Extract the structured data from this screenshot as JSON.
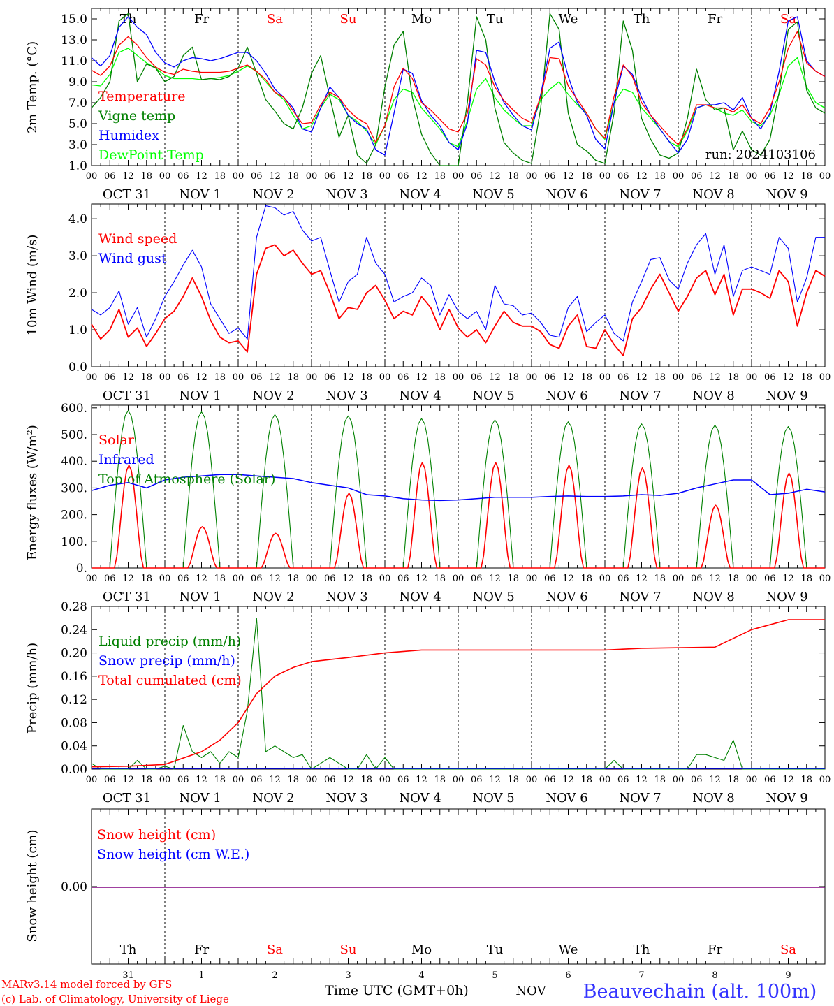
{
  "days": [
    "Th",
    "Fr",
    "Sa",
    "Su",
    "Mo",
    "Tu",
    "We",
    "Th",
    "Fr",
    "Sa"
  ],
  "weekend_days": [
    "Sa",
    "Su"
  ],
  "date_labels": [
    "OCT 31",
    "NOV  1",
    "NOV  2",
    "NOV  3",
    "NOV  4",
    "NOV  5",
    "NOV  6",
    "NOV  7",
    "NOV  8",
    "NOV  9"
  ],
  "hour_labels": [
    "00",
    "06",
    "12",
    "18"
  ],
  "last_hour_label": "00",
  "bottom_day_numbers": [
    "31",
    "1",
    "2",
    "3",
    "4",
    "5",
    "6",
    "7",
    "8",
    "9"
  ],
  "footer": {
    "model": "MARv3.14 model forced by GFS",
    "lab": "(c) Lab. of Climatology, University of Liege",
    "time_label": "Time UTC (GMT+0h)",
    "month": "NOV",
    "station": "Beauvechain (alt. 100m)"
  },
  "colors": {
    "red": "#ff0000",
    "darkgreen": "#008000",
    "blue": "#0000ff",
    "lightgreen": "#00ff00",
    "purple": "#800080"
  },
  "chart_data": [
    {
      "type": "line",
      "ylabel": "2m Temp. (°C)",
      "ylim": [
        1,
        16
      ],
      "yticks": [
        "1.0",
        "3.0",
        "5.0",
        "7.0",
        "9.0",
        "11.0",
        "13.0",
        "15.0"
      ],
      "annotation": "run: 2024103106",
      "x_hours_from_oct31_00": [
        0,
        3,
        6,
        9,
        12,
        15,
        18,
        21,
        24,
        27,
        30,
        33,
        36,
        39,
        42,
        45,
        48,
        51,
        54,
        57,
        60,
        63,
        66,
        69,
        72,
        75,
        78,
        81,
        84,
        87,
        90,
        93,
        96,
        99,
        102,
        105,
        108,
        111,
        114,
        117,
        120,
        123,
        126,
        129,
        132,
        135,
        138,
        141,
        144,
        147,
        150,
        153,
        156,
        159,
        162,
        165,
        168,
        171,
        174,
        177,
        180,
        183,
        186,
        189,
        192,
        195,
        198,
        201,
        204,
        207,
        210,
        213,
        216,
        219,
        222,
        225,
        228,
        231,
        234,
        237,
        240
      ],
      "series": [
        {
          "name": "Temperature",
          "color": "red",
          "values": [
            10.1,
            9.6,
            10.5,
            12.5,
            13.3,
            12.5,
            11.3,
            10.4,
            9.9,
            9.7,
            10.2,
            10.0,
            9.9,
            9.9,
            9.9,
            10.0,
            10.3,
            10.6,
            10.0,
            9.2,
            8.0,
            7.5,
            6.2,
            5.0,
            5.1,
            6.8,
            8.0,
            7.5,
            6.3,
            5.5,
            5.0,
            3.2,
            4.8,
            8.5,
            10.3,
            9.3,
            7.0,
            6.3,
            5.4,
            4.5,
            4.2,
            6.0,
            11.2,
            10.6,
            8.5,
            7.2,
            6.3,
            5.5,
            5.1,
            7.6,
            11.3,
            11.2,
            8.6,
            7.3,
            6.0,
            4.5,
            3.6,
            7.6,
            10.6,
            9.5,
            7.0,
            5.8,
            4.8,
            3.8,
            3.0,
            4.5,
            6.8,
            6.8,
            6.5,
            6.5,
            6.1,
            6.8,
            5.5,
            5.0,
            6.5,
            9.0,
            12.2,
            13.8,
            10.8,
            10.0,
            9.5
          ]
        },
        {
          "name": "Vigne temp",
          "color": "darkgreen",
          "values": [
            6.5,
            7.5,
            9.0,
            14.8,
            15.5,
            9.0,
            10.7,
            10.3,
            9.0,
            9.5,
            11.5,
            12.3,
            9.2,
            9.3,
            9.2,
            9.5,
            10.3,
            12.3,
            9.8,
            7.3,
            6.2,
            5.0,
            4.5,
            6.5,
            9.8,
            11.5,
            7.5,
            3.7,
            5.8,
            2.0,
            1.2,
            3.0,
            8.5,
            12.5,
            13.8,
            7.5,
            4.0,
            2.2,
            1.0,
            0.5,
            0.6,
            7.0,
            15.2,
            13.0,
            6.5,
            3.2,
            2.2,
            1.5,
            1.2,
            6.5,
            15.5,
            14.0,
            6.0,
            3.0,
            2.4,
            1.5,
            1.2,
            6.0,
            14.8,
            12.0,
            5.5,
            3.5,
            2.0,
            1.7,
            2.2,
            5.5,
            10.2,
            7.3,
            6.3,
            6.5,
            2.5,
            4.3,
            2.5,
            2.0,
            3.5,
            8.0,
            14.0,
            14.7,
            8.2,
            6.5,
            6.0
          ]
        },
        {
          "name": "Humidex",
          "color": "blue",
          "values": [
            11.3,
            10.5,
            11.5,
            14.2,
            15.2,
            14.2,
            13.5,
            11.8,
            10.8,
            10.4,
            11.0,
            11.3,
            11.2,
            11.0,
            11.2,
            11.5,
            11.8,
            11.8,
            11.0,
            9.8,
            8.3,
            7.5,
            6.5,
            4.5,
            4.2,
            6.5,
            8.5,
            7.5,
            5.8,
            5.0,
            4.5,
            2.5,
            2.0,
            6.0,
            10.2,
            9.8,
            7.2,
            5.8,
            4.8,
            3.2,
            2.5,
            5.0,
            12.0,
            11.8,
            9.0,
            7.0,
            5.8,
            4.8,
            4.4,
            7.8,
            12.2,
            12.8,
            9.5,
            7.0,
            5.8,
            3.5,
            2.6,
            7.0,
            10.5,
            9.7,
            7.5,
            5.8,
            4.5,
            3.3,
            2.2,
            3.5,
            6.5,
            6.8,
            6.8,
            7.0,
            6.3,
            7.5,
            5.5,
            4.5,
            6.0,
            10.0,
            14.8,
            15.2,
            11.0,
            10.0,
            9.5
          ]
        },
        {
          "name": "DewPoint Temp",
          "color": "lightgreen",
          "values": [
            8.7,
            8.6,
            9.7,
            11.8,
            12.2,
            11.5,
            10.8,
            10.3,
            9.6,
            9.3,
            9.3,
            9.3,
            9.2,
            9.3,
            9.4,
            9.6,
            10.0,
            10.5,
            10.0,
            9.0,
            8.0,
            7.3,
            5.8,
            4.5,
            4.8,
            6.5,
            7.8,
            7.3,
            5.8,
            5.2,
            4.3,
            3.0,
            4.8,
            7.3,
            8.3,
            8.0,
            6.5,
            5.5,
            4.5,
            3.2,
            2.8,
            5.3,
            8.3,
            9.3,
            7.5,
            6.3,
            5.5,
            4.8,
            4.8,
            7.3,
            8.3,
            9.0,
            7.8,
            6.8,
            6.0,
            4.5,
            3.5,
            7.0,
            8.3,
            8.0,
            6.5,
            5.5,
            4.5,
            3.3,
            2.8,
            4.3,
            6.5,
            6.8,
            6.5,
            6.0,
            5.8,
            6.3,
            5.2,
            4.8,
            5.8,
            7.8,
            10.5,
            11.3,
            8.5,
            7.0,
            6.5
          ]
        }
      ]
    },
    {
      "type": "line",
      "ylabel": "10m Wind (m/s)",
      "ylim": [
        0,
        4.4
      ],
      "yticks": [
        "0.0",
        "1.0",
        "2.0",
        "3.0",
        "4.0"
      ],
      "x_hours_from_oct31_00": [
        0,
        3,
        6,
        9,
        12,
        15,
        18,
        21,
        24,
        27,
        30,
        33,
        36,
        39,
        42,
        45,
        48,
        51,
        54,
        57,
        60,
        63,
        66,
        69,
        72,
        75,
        78,
        81,
        84,
        87,
        90,
        93,
        96,
        99,
        102,
        105,
        108,
        111,
        114,
        117,
        120,
        123,
        126,
        129,
        132,
        135,
        138,
        141,
        144,
        147,
        150,
        153,
        156,
        159,
        162,
        165,
        168,
        171,
        174,
        177,
        180,
        183,
        186,
        189,
        192,
        195,
        198,
        201,
        204,
        207,
        210,
        213,
        216,
        219,
        222,
        225,
        228,
        231,
        234,
        237,
        240
      ],
      "series": [
        {
          "name": "Wind speed",
          "color": "red",
          "values": [
            1.15,
            0.75,
            1.0,
            1.55,
            0.8,
            1.05,
            0.55,
            0.9,
            1.3,
            1.5,
            1.9,
            2.4,
            1.9,
            1.25,
            0.8,
            0.65,
            0.7,
            0.4,
            2.5,
            3.2,
            3.3,
            3.0,
            3.15,
            2.8,
            2.5,
            2.6,
            2.0,
            1.3,
            1.6,
            1.55,
            2.0,
            2.2,
            1.8,
            1.3,
            1.5,
            1.4,
            1.9,
            1.6,
            1.0,
            1.55,
            1.05,
            0.8,
            1.0,
            0.65,
            1.1,
            1.5,
            1.2,
            1.1,
            1.1,
            0.95,
            0.6,
            0.5,
            1.1,
            1.4,
            0.55,
            0.5,
            1.0,
            0.6,
            0.3,
            1.3,
            1.6,
            2.1,
            2.5,
            2.0,
            1.5,
            1.9,
            2.4,
            2.6,
            1.95,
            2.5,
            1.4,
            2.1,
            2.1,
            2.0,
            1.85,
            2.6,
            2.3,
            1.1,
            2.0,
            2.6,
            2.45
          ]
        },
        {
          "name": "Wind gust",
          "color": "blue",
          "values": [
            1.55,
            1.4,
            1.6,
            2.05,
            1.15,
            1.6,
            0.8,
            1.3,
            1.9,
            2.3,
            2.75,
            3.15,
            2.7,
            1.7,
            1.3,
            0.9,
            1.05,
            0.75,
            3.5,
            4.35,
            4.3,
            4.1,
            4.2,
            3.7,
            3.4,
            3.5,
            2.6,
            1.75,
            2.3,
            2.5,
            3.5,
            2.8,
            2.5,
            1.75,
            1.9,
            2.0,
            2.4,
            2.2,
            1.4,
            1.95,
            1.5,
            1.3,
            1.5,
            1.0,
            2.2,
            1.7,
            1.65,
            1.4,
            1.45,
            1.2,
            0.85,
            0.8,
            1.6,
            1.9,
            0.95,
            1.2,
            1.4,
            0.9,
            0.7,
            1.75,
            2.3,
            2.9,
            2.95,
            2.35,
            2.1,
            2.8,
            3.3,
            3.6,
            2.5,
            3.3,
            1.9,
            2.6,
            2.7,
            2.6,
            2.5,
            3.5,
            3.2,
            1.75,
            2.4,
            3.5,
            3.5
          ]
        }
      ]
    },
    {
      "type": "line",
      "ylabel": "Energy fluxes (W/m²)",
      "ylim": [
        0,
        610
      ],
      "yticks": [
        "0.",
        "100.",
        "200.",
        "300.",
        "400.",
        "500.",
        "600."
      ],
      "series": [
        {
          "name": "Solar",
          "color": "red",
          "day_peaks": [
            385,
            155,
            130,
            280,
            395,
            395,
            385,
            375,
            235,
            355
          ]
        },
        {
          "name": "Infrared",
          "color": "blue",
          "x_hours_from_oct31_00": [
            0,
            6,
            12,
            18,
            24,
            30,
            36,
            42,
            48,
            54,
            60,
            66,
            72,
            78,
            84,
            90,
            96,
            102,
            108,
            114,
            120,
            126,
            132,
            138,
            144,
            150,
            156,
            162,
            168,
            174,
            180,
            186,
            192,
            198,
            204,
            210,
            216,
            222,
            228,
            234,
            240
          ],
          "values": [
            290,
            310,
            320,
            300,
            330,
            340,
            345,
            350,
            350,
            345,
            340,
            335,
            320,
            310,
            300,
            275,
            270,
            260,
            255,
            253,
            255,
            260,
            265,
            265,
            265,
            268,
            270,
            268,
            268,
            270,
            275,
            272,
            280,
            300,
            315,
            330,
            330,
            275,
            280,
            295,
            285
          ]
        },
        {
          "name": "Top of Atmosphere (Solar)",
          "color": "darkgreen",
          "day_peaks": [
            590,
            585,
            575,
            570,
            560,
            555,
            548,
            540,
            535,
            530
          ]
        }
      ]
    },
    {
      "type": "line",
      "ylabel": "Precip (mm/h)",
      "ylim": [
        0,
        0.28
      ],
      "yticks": [
        "0.00",
        "0.04",
        "0.08",
        "0.12",
        "0.16",
        "0.20",
        "0.24",
        "0.28"
      ],
      "series": [
        {
          "name": "Liquid precip (mm/h)",
          "color": "darkgreen",
          "x_hours_from_oct31_00": [
            0,
            3,
            6,
            9,
            12,
            15,
            18,
            21,
            24,
            27,
            30,
            33,
            36,
            39,
            42,
            45,
            48,
            51,
            54,
            57,
            60,
            63,
            66,
            69,
            72,
            75,
            78,
            81,
            84,
            87,
            90,
            93,
            96,
            99,
            102,
            105,
            108,
            111,
            114,
            117,
            120,
            123,
            126,
            129,
            132,
            135,
            138,
            141,
            144,
            147,
            150,
            153,
            156,
            159,
            162,
            165,
            168,
            171,
            174,
            177,
            180,
            183,
            186,
            189,
            192,
            195,
            198,
            201,
            204,
            207,
            210,
            213,
            216,
            219,
            222,
            225,
            228,
            231,
            234,
            237,
            240
          ],
          "values": [
            0.01,
            0.0,
            0.0,
            0.0,
            0.0,
            0.015,
            0.0,
            0.0,
            0.005,
            0.0,
            0.075,
            0.03,
            0.02,
            0.03,
            0.01,
            0.03,
            0.02,
            0.1,
            0.26,
            0.03,
            0.04,
            0.03,
            0.02,
            0.025,
            0.0,
            0.01,
            0.02,
            0.01,
            0.0,
            0.0,
            0.025,
            0.0,
            0.02,
            0.0,
            0.0,
            0.0,
            0.0,
            0.0,
            0.0,
            0.0,
            0.0,
            0.0,
            0.0,
            0.0,
            0.0,
            0.0,
            0.0,
            0.0,
            0.0,
            0.0,
            0.0,
            0.0,
            0.0,
            0.0,
            0.0,
            0.0,
            0.0,
            0.015,
            0.0,
            0.0,
            0.0,
            0.0,
            0.0,
            0.0,
            0.0,
            0.0,
            0.025,
            0.025,
            0.02,
            0.015,
            0.05,
            0.0,
            0.0,
            0.0,
            0.0,
            0.0,
            0.0,
            0.0,
            0.0,
            0.0,
            0.0
          ]
        },
        {
          "name": "Snow precip (mm/h)",
          "color": "blue",
          "values": []
        },
        {
          "name": "Total cumulated (cm)",
          "color": "red",
          "x_hours_from_oct31_00": [
            0,
            12,
            24,
            36,
            42,
            48,
            54,
            60,
            66,
            72,
            84,
            96,
            108,
            132,
            156,
            168,
            180,
            204,
            216,
            228,
            240
          ],
          "values": [
            0.004,
            0.005,
            0.008,
            0.03,
            0.05,
            0.08,
            0.13,
            0.16,
            0.175,
            0.185,
            0.192,
            0.2,
            0.205,
            0.205,
            0.205,
            0.205,
            0.208,
            0.21,
            0.24,
            0.257,
            0.257
          ]
        }
      ]
    },
    {
      "type": "line",
      "ylabel": "Snow height (cm)",
      "yticks": [
        "0.00"
      ],
      "series": [
        {
          "name": "Snow height (cm)",
          "color": "red",
          "values": [
            0.0
          ]
        },
        {
          "name": "Snow height (cm W.E.)",
          "color": "blue",
          "values": [
            0.0
          ]
        }
      ]
    }
  ]
}
